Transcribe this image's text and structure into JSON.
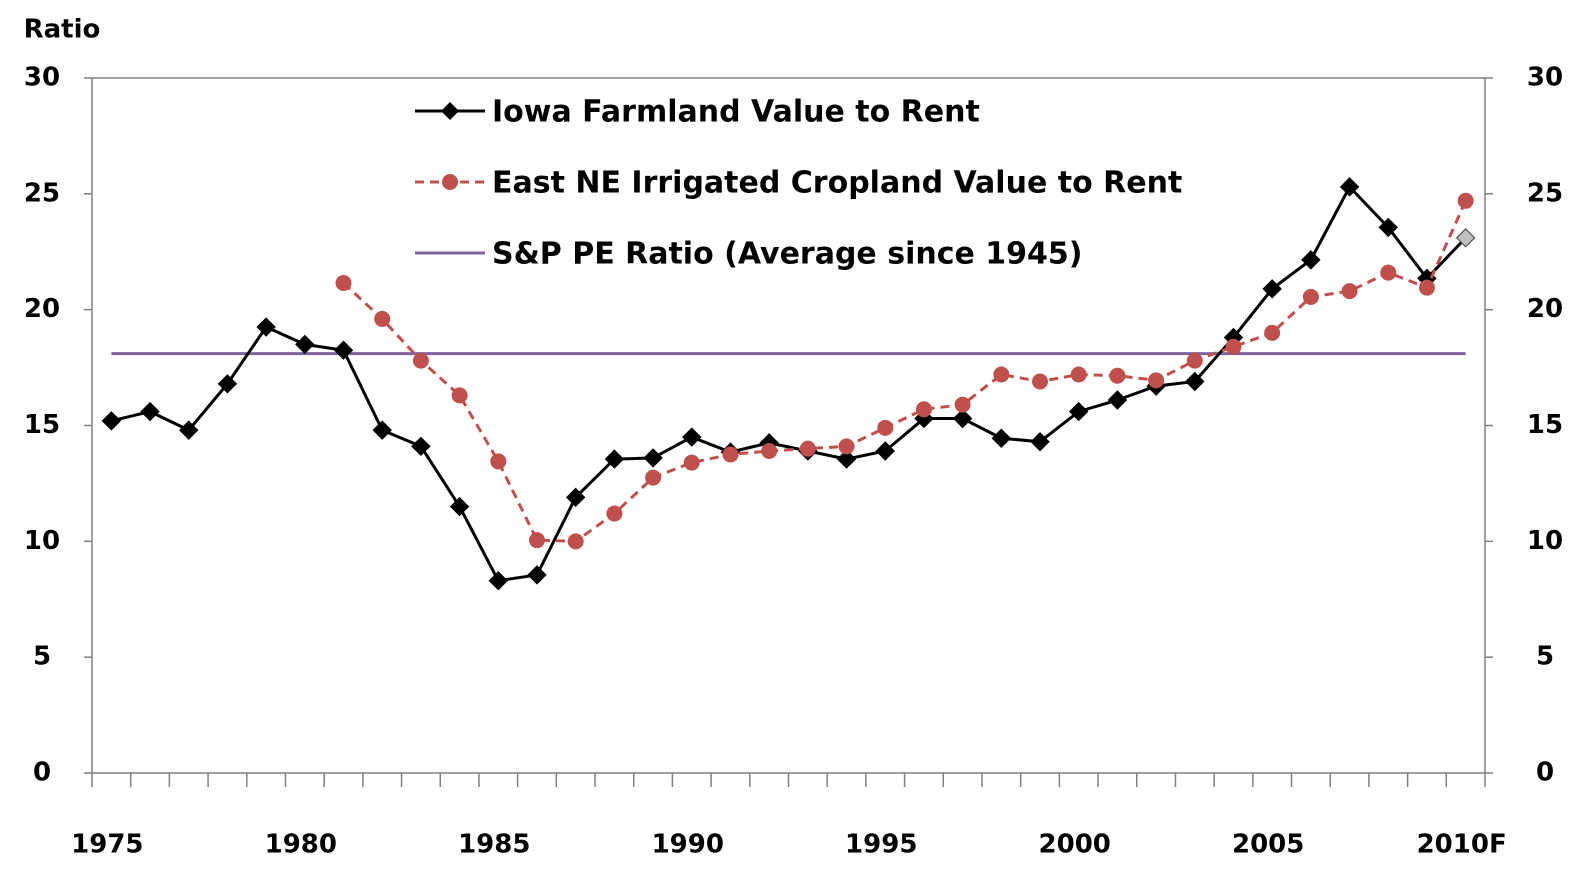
{
  "chart_data": {
    "type": "line",
    "y_axis_label": "Ratio",
    "categories": [
      "1975",
      null,
      null,
      null,
      null,
      "1980",
      null,
      null,
      null,
      null,
      "1985",
      null,
      null,
      null,
      null,
      "1990",
      null,
      null,
      null,
      null,
      "1995",
      null,
      null,
      null,
      null,
      "2000",
      null,
      null,
      null,
      null,
      "2005",
      null,
      null,
      null,
      null,
      "2010F"
    ],
    "series": [
      {
        "name": "Iowa Farmland Value to Rent",
        "color": "#000000",
        "marker": "diamond",
        "dash": false,
        "last_marker_color": "#bfbfbf",
        "values": [
          15.2,
          15.6,
          14.8,
          16.8,
          19.25,
          18.5,
          18.25,
          14.8,
          14.1,
          11.5,
          8.3,
          8.55,
          11.9,
          13.55,
          13.6,
          14.5,
          13.85,
          14.25,
          13.9,
          13.55,
          13.9,
          15.3,
          15.3,
          14.45,
          14.3,
          15.6,
          16.1,
          16.7,
          16.9,
          18.8,
          20.9,
          22.15,
          25.3,
          23.55,
          21.35,
          23.1
        ]
      },
      {
        "name": "East NE Irrigated Cropland Value to Rent",
        "color": "#c0504d",
        "marker": "circle",
        "dash": true,
        "values": [
          null,
          null,
          null,
          null,
          null,
          null,
          21.15,
          19.6,
          17.8,
          16.3,
          13.45,
          10.05,
          10.0,
          11.2,
          12.75,
          13.4,
          13.75,
          13.9,
          14.0,
          14.1,
          14.9,
          15.7,
          15.9,
          17.2,
          16.9,
          17.2,
          17.15,
          16.95,
          17.8,
          18.4,
          19.0,
          20.55,
          20.8,
          21.6,
          20.95,
          24.7
        ]
      }
    ],
    "reference_line": {
      "name": "S&P PE Ratio (Average since 1945)",
      "color": "#8064a2",
      "value": 18.1
    },
    "ylim": [
      0,
      30
    ],
    "yticks": [
      0,
      5,
      10,
      15,
      20,
      25,
      30
    ],
    "y2lim": [
      0,
      30
    ],
    "y2ticks": [
      0,
      5,
      10,
      15,
      20,
      25,
      30
    ],
    "legend": "top-center"
  }
}
